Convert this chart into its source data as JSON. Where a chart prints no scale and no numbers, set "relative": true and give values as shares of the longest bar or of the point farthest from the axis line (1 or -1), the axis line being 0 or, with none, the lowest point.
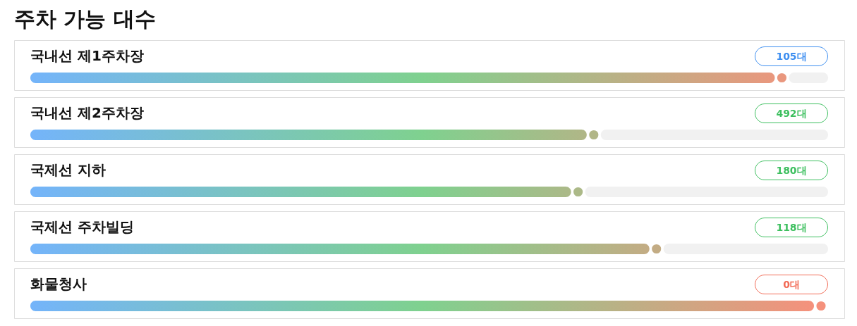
{
  "chart_data": {
    "type": "bar",
    "orientation": "horizontal",
    "relative": true,
    "marker": "circle",
    "title": "주차 가능 대수",
    "categories": [
      "국내선 제1주차장",
      "국내선 제2주차장",
      "국제선 지하",
      "국제선 주차빌딩",
      "화물청사"
    ],
    "values": [
      0.95,
      0.71,
      0.69,
      0.79,
      1
    ],
    "annotations": [
      "105대",
      "492대",
      "180대",
      "118대",
      "0대"
    ]
  }
}
